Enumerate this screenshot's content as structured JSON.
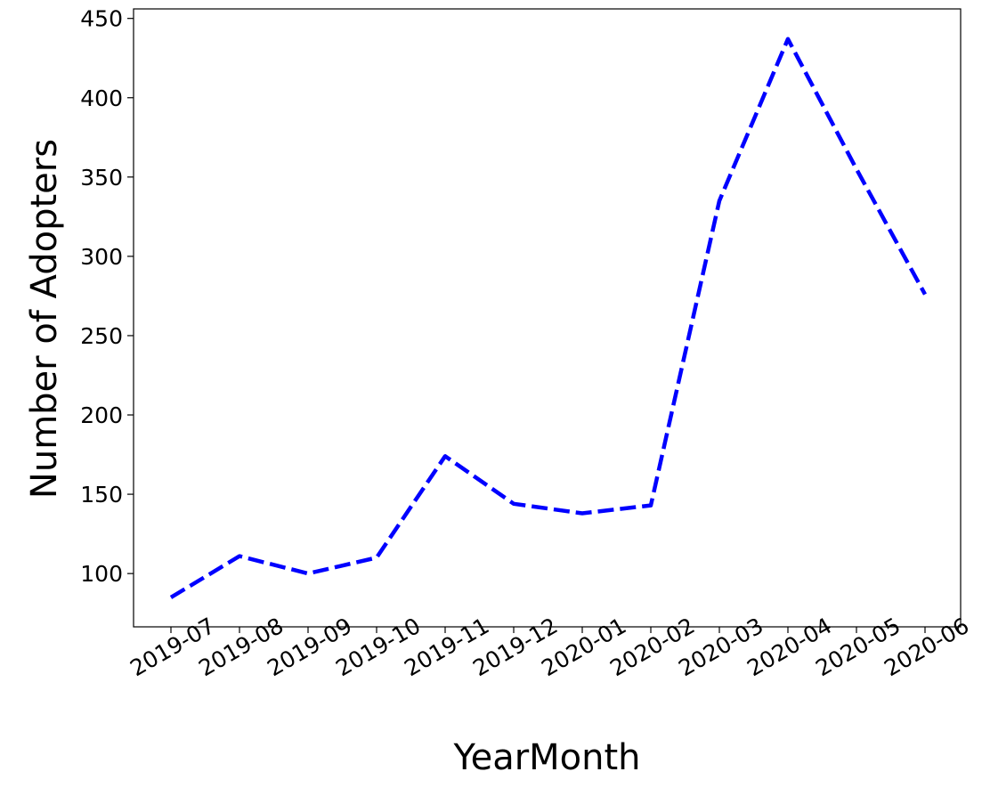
{
  "chart_data": {
    "type": "line",
    "title": "",
    "xlabel": "YearMonth",
    "ylabel": "Number of Adopters",
    "categories": [
      "2019-07",
      "2019-08",
      "2019-09",
      "2019-10",
      "2019-11",
      "2019-12",
      "2020-01",
      "2020-02",
      "2020-03",
      "2020-04",
      "2020-05",
      "2020-06"
    ],
    "series": [
      {
        "values": [
          85,
          111,
          100,
          110,
          174,
          144,
          138,
          143,
          335,
          437,
          355,
          276
        ],
        "color": "#0000ff",
        "line_style": "dashed"
      }
    ],
    "yticks": [
      100,
      150,
      200,
      250,
      300,
      350,
      400,
      450
    ],
    "ylim": [
      66.4,
      456.0
    ],
    "grid": false,
    "legend": "none",
    "x_tick_rotation": 30
  }
}
